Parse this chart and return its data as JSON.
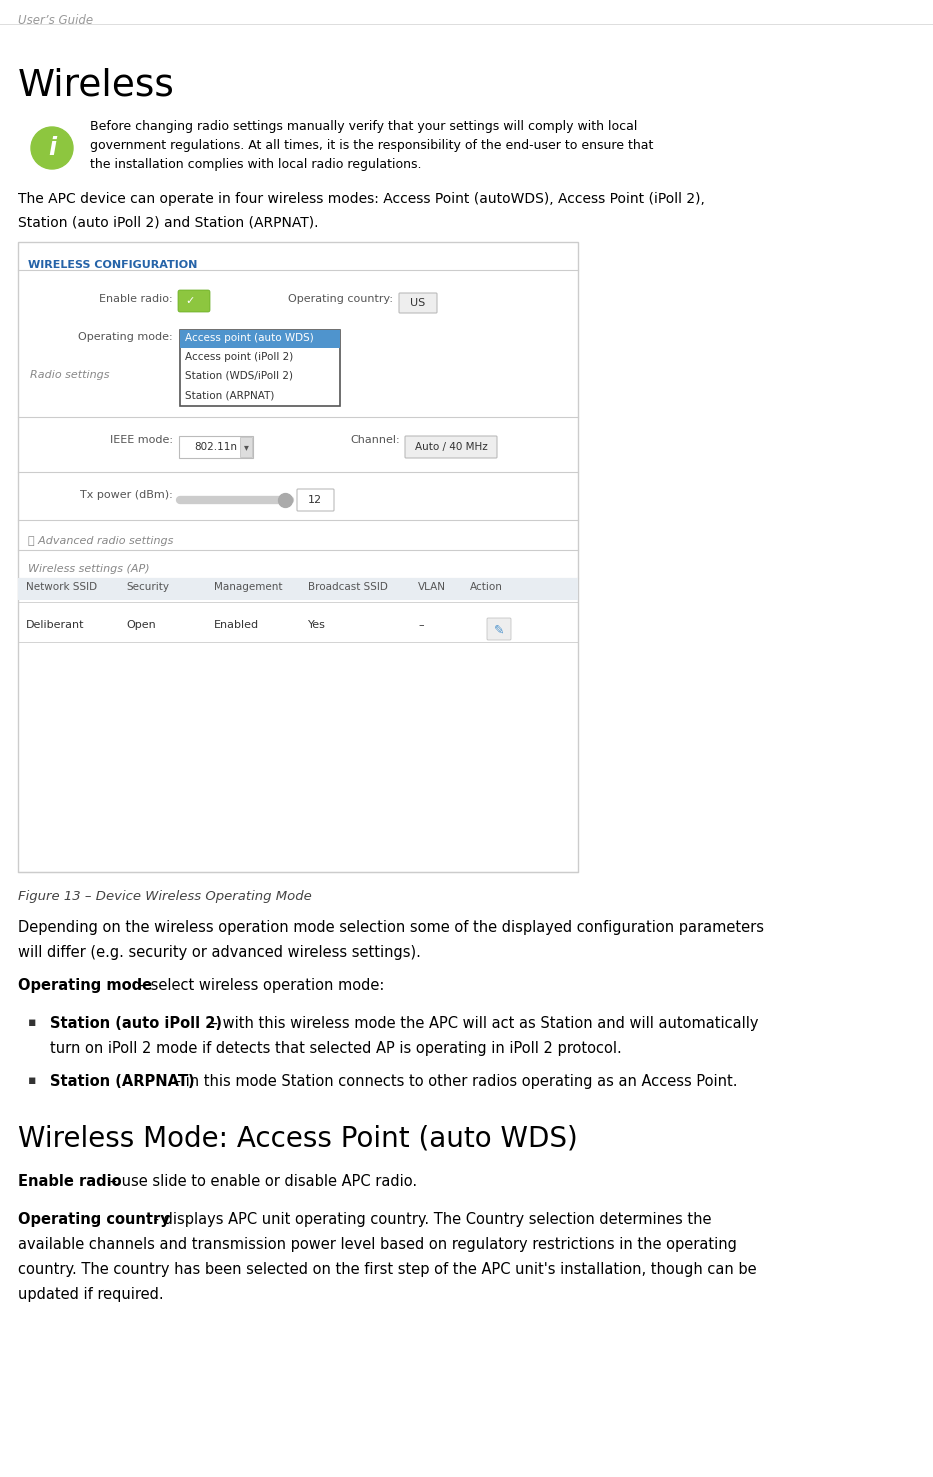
{
  "page_header": "User’s Guide",
  "title": "Wireless",
  "info_text_lines": [
    "Before changing radio settings manually verify that your settings will comply with local",
    "government regulations. At all times, it is the responsibility of the end-user to ensure that",
    "the installation complies with local radio regulations."
  ],
  "intro_line1": "The APC device can operate in four wireless modes: Access Point (autoWDS), Access Point (iPoll 2),",
  "intro_line2": "Station (auto iPoll 2) and Station (ARPNAT).",
  "figure_label": "Figure 13 – Device Wireless Operating Mode",
  "section_label": "WIRELESS CONFIGURATION",
  "ui_fields": {
    "enable_radio_label": "Enable radio:",
    "operating_country_label": "Operating country:",
    "operating_country_value": "US",
    "operating_mode_label": "Operating mode:",
    "dropdown_items": [
      "Access point (auto WDS)",
      "Access point (iPoll 2)",
      "Station (WDS/iPoll 2)",
      "Station (ARPNAT)"
    ],
    "radio_settings_label": "Radio settings",
    "ieee_mode_label": "IEEE mode:",
    "ieee_mode_value": "802.11n",
    "channel_label": "Channel:",
    "channel_value": "Auto / 40 MHz",
    "tx_power_label": "Tx power (dBm):",
    "tx_power_value": "12",
    "advanced_label": "Ⓜ Advanced radio settings",
    "wireless_ap_label": "Wireless settings (AP)",
    "network_ssid_label": "Network SSID",
    "security_label": "Security",
    "management_label": "Management",
    "broadcast_ssid_label": "Broadcast SSID",
    "vlan_label": "VLAN",
    "action_label": "Action",
    "table_row": [
      "Deliberant",
      "Open",
      "Enabled",
      "Yes",
      "–",
      ""
    ]
  },
  "body_para1_line1": "Depending on the wireless operation mode selection some of the displayed configuration parameters",
  "body_para1_line2": "will differ (e.g. security or advanced wireless settings).",
  "op_mode_bold": "Operating mode",
  "op_mode_rest": " – select wireless operation mode:",
  "bullet1_bold": "Station (auto iPoll 2)",
  "bullet1_rest": " – with this wireless mode the APC will act as Station and will automatically",
  "bullet1_line2": "turn on iPoll 2 mode if detects that selected AP is operating in iPoll 2 protocol.",
  "bullet2_bold": "Station (ARPNAT)",
  "bullet2_rest": " – in this mode Station connects to other radios operating as an Access Point.",
  "subtitle2": "Wireless Mode: Access Point (auto WDS)",
  "enable_radio_bold": "Enable radio",
  "enable_radio_rest": " – use slide to enable or disable APC radio.",
  "op_country_bold": "Operating country",
  "op_country_rest": " - displays APC unit operating country. The Country selection determines the",
  "op_country_line2": "available channels and transmission power level based on regulatory restrictions in the operating",
  "op_country_line3": "country. The country has been selected on the first step of the APC unit's installation, though can be",
  "op_country_line4": "updated if required.",
  "bg_color": "#ffffff",
  "header_color": "#999999",
  "title_color": "#000000",
  "info_icon_color": "#8dc63f",
  "section_color": "#2563a8",
  "dropdown_sel_color": "#4f94cd",
  "table_header_bg": "#e8edf2",
  "table_row_bg": "#ffffff",
  "divider_color": "#cccccc",
  "body_color": "#000000",
  "muted_color": "#888888",
  "figure_label_color": "#444444",
  "ui_box_bg": "#f5f5f5",
  "ui_box_border": "#cccccc"
}
